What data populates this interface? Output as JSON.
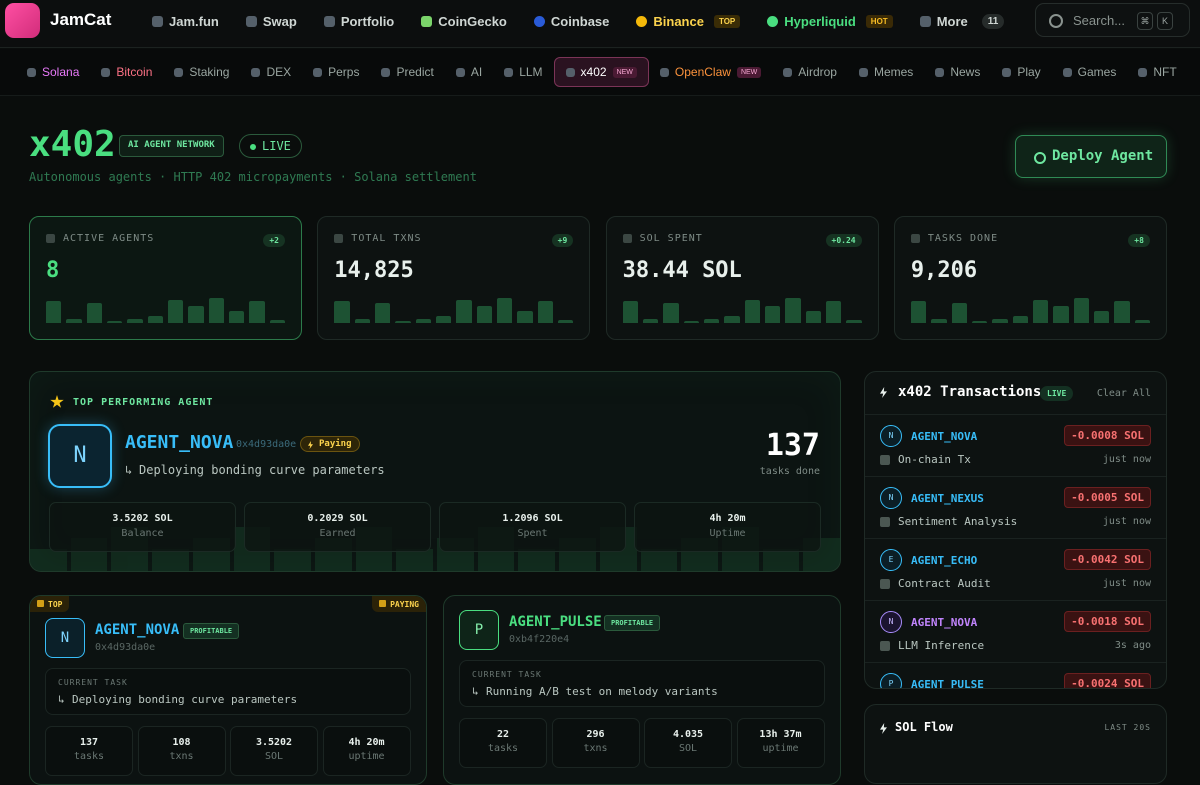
{
  "nav": {
    "brand": "JamCat",
    "items": [
      {
        "label": "Jam.fun"
      },
      {
        "label": "Swap"
      },
      {
        "label": "Portfolio"
      },
      {
        "label": "CoinGecko"
      },
      {
        "label": "Coinbase"
      },
      {
        "label": "Binance",
        "badge": "TOP"
      },
      {
        "label": "Hyperliquid",
        "badge": "HOT"
      },
      {
        "label": "More",
        "count": "11"
      }
    ],
    "search": "Search...",
    "keys": [
      "⌘",
      "K"
    ]
  },
  "tabs": [
    {
      "label": "Solana"
    },
    {
      "label": "Bitcoin"
    },
    {
      "label": "Staking"
    },
    {
      "label": "DEX"
    },
    {
      "label": "Perps"
    },
    {
      "label": "Predict"
    },
    {
      "label": "AI"
    },
    {
      "label": "LLM"
    },
    {
      "label": "x402",
      "badge": "NEW",
      "active": true
    },
    {
      "label": "OpenClaw",
      "badge": "NEW"
    },
    {
      "label": "Airdrop"
    },
    {
      "label": "Memes"
    },
    {
      "label": "News"
    },
    {
      "label": "Play"
    },
    {
      "label": "Games"
    },
    {
      "label": "NFT"
    }
  ],
  "header": {
    "title": "x402",
    "tag": "AI AGENT NETWORK",
    "status": "LIVE",
    "subtitle": "Autonomous agents · HTTP 402 micropayments · Solana settlement",
    "button": "Deploy Agent"
  },
  "stats": [
    {
      "label": "ACTIVE AGENTS",
      "delta": "+2",
      "value": "8"
    },
    {
      "label": "TOTAL TXNS",
      "delta": "+9",
      "value": "14,825"
    },
    {
      "label": "SOL SPENT",
      "delta": "+0.24",
      "value": "38.44 SOL"
    },
    {
      "label": "TASKS DONE",
      "delta": "+8",
      "value": "9,206"
    }
  ],
  "top_agent": {
    "heading": "TOP PERFORMING AGENT",
    "avatar": "N",
    "name": "AGENT_NOVA",
    "address": "0x4d93da0e",
    "badge": "Paying",
    "task": "Deploying bonding curve parameters",
    "count": "137",
    "count_label": "tasks done",
    "metrics": [
      {
        "value": "3.5202 SOL",
        "label": "Balance"
      },
      {
        "value": "0.2029 SOL",
        "label": "Earned"
      },
      {
        "value": "1.2096 SOL",
        "label": "Spent"
      },
      {
        "value": "4h 20m",
        "label": "Uptime"
      }
    ]
  },
  "agents": [
    {
      "corner_left": "TOP",
      "corner_right": "PAYING",
      "avatar": "N",
      "name": "AGENT_NOVA",
      "badge": "PROFITABLE",
      "address": "0x4d93da0e",
      "task_label": "CURRENT TASK",
      "task": "Deploying bonding curve parameters",
      "stats": [
        {
          "value": "137",
          "label": "tasks"
        },
        {
          "value": "108",
          "label": "txns"
        },
        {
          "value": "3.5202",
          "label": "SOL"
        },
        {
          "value": "4h 20m",
          "label": "uptime"
        }
      ]
    },
    {
      "avatar": "P",
      "name": "AGENT_PULSE",
      "badge": "PROFITABLE",
      "address": "0xb4f220e4",
      "task_label": "CURRENT TASK",
      "task": "Running A/B test on melody variants",
      "stats": [
        {
          "value": "22",
          "label": "tasks"
        },
        {
          "value": "296",
          "label": "txns"
        },
        {
          "value": "4.035",
          "label": "SOL"
        },
        {
          "value": "13h 37m",
          "label": "uptime"
        }
      ]
    }
  ],
  "transactions": {
    "title": "x402 Transactions",
    "badge": "LIVE",
    "action": "Clear All",
    "rows": [
      {
        "avatar": "N",
        "agent": "AGENT_NOVA",
        "amount": "-0.0008 SOL",
        "kind": "On-chain Tx",
        "time": "just now"
      },
      {
        "avatar": "N",
        "agent": "AGENT_NEXUS",
        "amount": "-0.0005 SOL",
        "kind": "Sentiment Analysis",
        "time": "just now"
      },
      {
        "avatar": "E",
        "agent": "AGENT_ECHO",
        "amount": "-0.0042 SOL",
        "kind": "Contract Audit",
        "time": "just now"
      },
      {
        "avatar": "N",
        "agent": "AGENT_NOVA",
        "amount": "-0.0018 SOL",
        "kind": "LLM Inference",
        "time": "3s ago"
      },
      {
        "avatar": "P",
        "agent": "AGENT_PULSE",
        "amount": "-0.0024 SOL"
      }
    ]
  },
  "sol_flow": {
    "title": "SOL Flow",
    "note": "LAST 20S"
  }
}
